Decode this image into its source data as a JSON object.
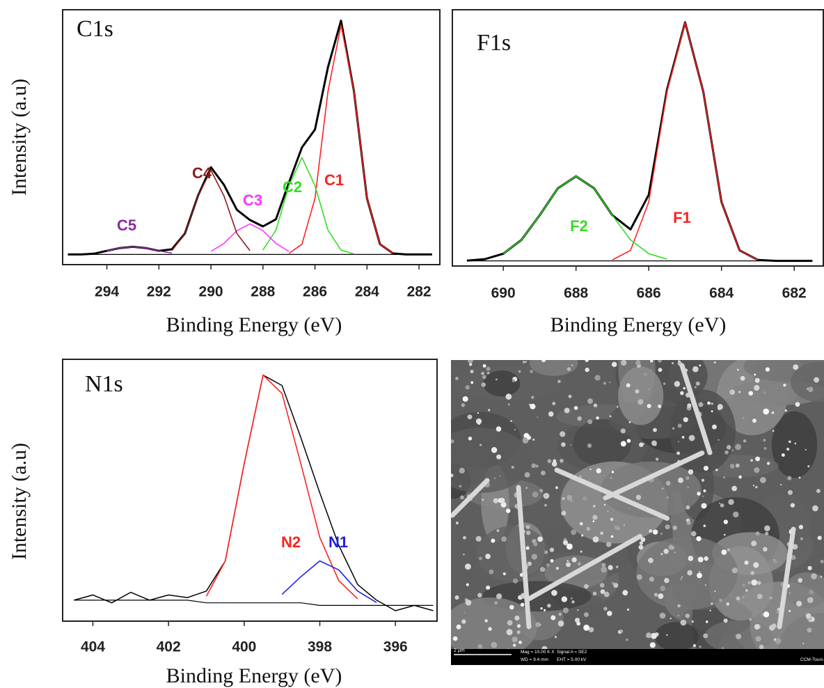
{
  "chart_data": [
    {
      "type": "line",
      "title": "C1s",
      "x_label": "Binding Energy (eV)",
      "y_label": "Intensity (a.u)",
      "xlim": [
        295.7,
        281.2
      ],
      "xticks": [
        294,
        292,
        290,
        288,
        286,
        284,
        282
      ],
      "ylim": [
        0,
        100
      ],
      "x": [
        295.5,
        295,
        294.5,
        294,
        293.5,
        293,
        292.5,
        292,
        291.5,
        291,
        290.5,
        290,
        289.5,
        289,
        288.5,
        288,
        287.5,
        287,
        286.5,
        286,
        285.5,
        285,
        284.5,
        284,
        283.5,
        283,
        282.5,
        282,
        281.5
      ],
      "series": [
        {
          "color": "#000000",
          "values": [
            4,
            4,
            4.3,
            5.4,
            6.5,
            7,
            6.5,
            5.4,
            6,
            12.2,
            27,
            38.2,
            31.3,
            21.5,
            17.5,
            15,
            17.8,
            32.2,
            46,
            53,
            77.5,
            95.7,
            68,
            26,
            8,
            4.4,
            4,
            4,
            4
          ]
        },
        {
          "color": "#000000",
          "values": [
            4,
            4,
            4,
            4,
            4,
            4,
            4,
            4,
            4,
            4,
            4,
            4,
            4,
            4,
            4,
            4,
            4,
            4,
            4,
            4,
            4,
            4,
            4,
            4,
            4,
            4,
            4,
            4,
            4
          ]
        },
        {
          "name": "C1",
          "color": "#ff2020",
          "values": [
            null,
            null,
            null,
            null,
            null,
            null,
            null,
            null,
            null,
            null,
            null,
            null,
            null,
            null,
            null,
            null,
            null,
            4.4,
            8,
            26,
            68,
            94,
            68,
            26,
            8,
            4.4,
            null,
            null,
            null
          ]
        },
        {
          "name": "C2",
          "color": "#33dd22",
          "values": [
            null,
            null,
            null,
            null,
            null,
            null,
            null,
            null,
            null,
            null,
            null,
            null,
            null,
            null,
            null,
            5.7,
            13.5,
            31,
            42,
            31,
            13.5,
            5.7,
            4.2,
            null,
            null,
            null,
            null,
            null,
            null
          ]
        },
        {
          "name": "C3",
          "color": "#ff33ff",
          "values": [
            null,
            null,
            null,
            null,
            null,
            null,
            null,
            null,
            null,
            null,
            null,
            5.2,
            8.3,
            13.3,
            16,
            13.3,
            8.3,
            5.2,
            null,
            null,
            null,
            null,
            null,
            null,
            null,
            null,
            null,
            null,
            null
          ]
        },
        {
          "name": "C4",
          "color": "#8b1a1a",
          "values": [
            null,
            null,
            null,
            null,
            null,
            null,
            null,
            null,
            5.5,
            12.2,
            27,
            37,
            27,
            12.2,
            5.5,
            null,
            null,
            null,
            null,
            null,
            null,
            null,
            null,
            null,
            null,
            null,
            null,
            null,
            null
          ]
        },
        {
          "name": "C5",
          "color": "#8b2a9b",
          "values": [
            null,
            null,
            null,
            5.4,
            6.5,
            7,
            6.5,
            5.4,
            4.5,
            null,
            null,
            null,
            null,
            null,
            null,
            null,
            null,
            null,
            null,
            null,
            null,
            null,
            null,
            null,
            null,
            null,
            null,
            null,
            null
          ]
        }
      ]
    },
    {
      "type": "line",
      "title": "F1s",
      "x_label": "Binding Energy (eV)",
      "xlim": [
        691.4,
        681.2
      ],
      "xticks": [
        690,
        688,
        686,
        684,
        682
      ],
      "ylim": [
        0,
        100
      ],
      "x": [
        691,
        690.5,
        690,
        689.5,
        689,
        688.5,
        688,
        687.5,
        687,
        686.5,
        686,
        685.5,
        685,
        684.5,
        684,
        683.5,
        683,
        682.5,
        682,
        681.5
      ],
      "series": [
        {
          "color": "#000000",
          "values": [
            2.1,
            2.7,
            4.8,
            10.2,
            19.8,
            30.3,
            35,
            30.3,
            19.8,
            14.3,
            27.8,
            68.7,
            95.1,
            68,
            25,
            6.1,
            2.4,
            2,
            2,
            2
          ]
        },
        {
          "color": "#000000",
          "values": [
            2,
            2,
            2,
            2,
            2,
            2,
            2,
            2,
            2,
            2,
            2,
            2,
            2,
            2,
            2,
            2,
            2,
            2,
            2,
            2
          ]
        },
        {
          "name": "F1",
          "color": "#ff2020",
          "values": [
            null,
            null,
            null,
            null,
            null,
            null,
            null,
            null,
            2.4,
            6.1,
            25,
            68,
            95,
            68,
            25,
            6.1,
            2.4,
            null,
            null,
            null
          ]
        },
        {
          "name": "F2",
          "color": "#33dd22",
          "values": [
            null,
            null,
            4.8,
            10.2,
            19.8,
            30.3,
            35,
            30.3,
            19.8,
            10.2,
            4.8,
            2.7,
            null,
            null,
            null,
            null,
            null,
            null,
            null,
            null
          ]
        }
      ]
    },
    {
      "type": "line",
      "title": "N1s",
      "x_label": "Binding Energy (eV)",
      "y_label": "Intensity (a.u)",
      "xlim": [
        404.8,
        394.9
      ],
      "xticks": [
        404,
        402,
        400,
        398,
        396
      ],
      "ylim": [
        0,
        100
      ],
      "x": [
        404.5,
        404,
        403.5,
        403,
        402.5,
        402,
        401.5,
        401,
        400.5,
        400,
        399.5,
        399,
        398.5,
        398,
        397.5,
        397,
        396.5,
        396,
        395.5,
        395
      ],
      "series": [
        {
          "color": "#000000",
          "values": [
            8,
            10,
            7,
            11,
            8,
            10,
            9,
            11.5,
            23,
            60,
            94,
            90,
            70,
            49,
            29,
            14,
            8,
            4,
            6,
            4
          ]
        },
        {
          "color": "#000000",
          "values": [
            8,
            8,
            8,
            8,
            8,
            8,
            8,
            7,
            7,
            7,
            7,
            7,
            7,
            6,
            6,
            6,
            6,
            6,
            6,
            6
          ]
        },
        {
          "name": "N2",
          "color": "#ff2020",
          "values": [
            null,
            null,
            null,
            null,
            null,
            null,
            null,
            9.5,
            23,
            60,
            94,
            87,
            60,
            32,
            15.5,
            8.5,
            null,
            null,
            null,
            null
          ]
        },
        {
          "name": "N1",
          "color": "#2222dd",
          "values": [
            null,
            null,
            null,
            null,
            null,
            null,
            null,
            null,
            null,
            null,
            null,
            10.2,
            17,
            23,
            19.6,
            11.5,
            7.1,
            null,
            null,
            null
          ]
        }
      ]
    }
  ],
  "image": {
    "scale_bar": "2 µm",
    "info": [
      "Mag = 10.00 K X",
      "Signal A = SE2",
      "WD = 9.4 mm",
      "EHT = 5.00 kV",
      "CCM-Tours"
    ]
  }
}
